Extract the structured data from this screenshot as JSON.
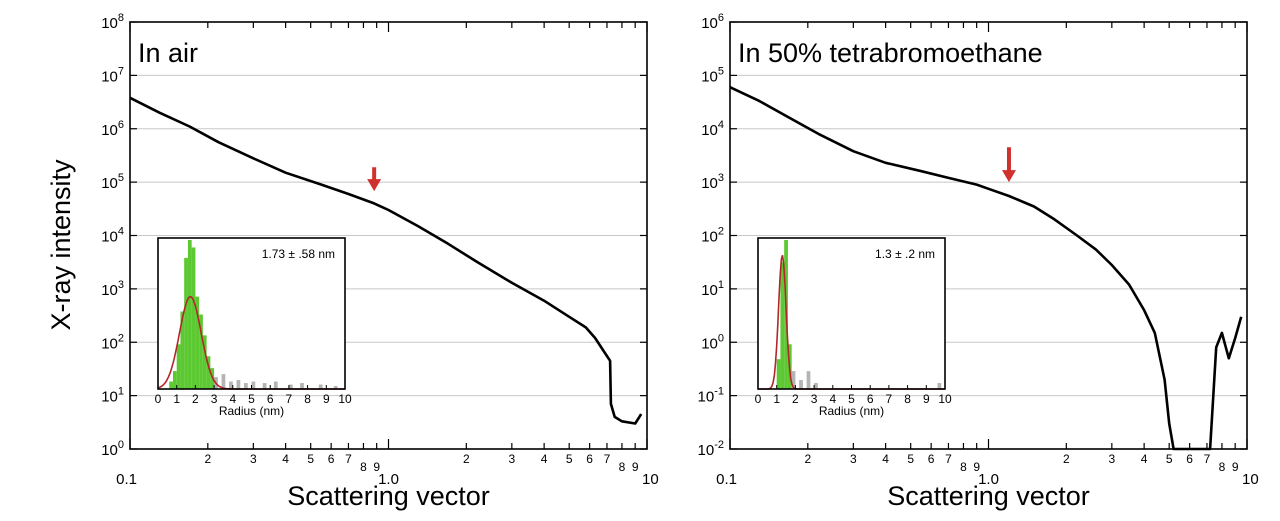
{
  "figure": {
    "ylabel": "X-ray intensity"
  },
  "chart_data": [
    {
      "type": "line",
      "title": "In air",
      "xlabel": "Scattering vector",
      "ylabel": "X-ray intensity",
      "xscale": "log",
      "yscale": "log",
      "xlim": [
        0.1,
        10
      ],
      "ylim": [
        1,
        100000000
      ],
      "x_tick_labels": [
        "0.1",
        "2",
        "3",
        "4",
        "5",
        "6",
        "7",
        "8",
        "9",
        "1.0",
        "2",
        "3",
        "4",
        "5",
        "6",
        "7",
        "8",
        "9",
        "10"
      ],
      "y_tick_labels": [
        "10^0",
        "10^1",
        "10^2",
        "10^3",
        "10^4",
        "10^5",
        "10^6",
        "10^7",
        "10^8"
      ],
      "grid": "horizontal",
      "series": [
        {
          "color": "#000000",
          "x": [
            0.1,
            0.13,
            0.17,
            0.22,
            0.3,
            0.4,
            0.55,
            0.7,
            0.88,
            1.0,
            1.3,
            1.7,
            2.2,
            3.0,
            4.0,
            5.0,
            5.8,
            6.3,
            7.0,
            7.2,
            7.25,
            7.5,
            8.0,
            9.0,
            9.5
          ],
          "y": [
            3800000,
            2000000,
            1100000,
            560000,
            280000,
            150000,
            90000,
            60000,
            40000,
            30000,
            15000,
            7000,
            3200,
            1300,
            600,
            300,
            190,
            120,
            55,
            45,
            7,
            4,
            3.3,
            3,
            4.5
          ]
        }
      ],
      "annotation": {
        "type": "arrow",
        "color": "#d0312d",
        "x": 0.88,
        "y_tip": 68000,
        "y_tail": 190000
      },
      "inset": {
        "type": "bar",
        "xlabel": "Radius (nm)",
        "annotation": "1.73 ± .58 nm",
        "xlim": [
          0,
          10
        ],
        "x_tick_labels": [
          "0",
          "1",
          "2",
          "3",
          "4",
          "5",
          "6",
          "7",
          "8",
          "9",
          "10"
        ],
        "bin_width": 0.2,
        "bins_green": [
          {
            "x": 0.6,
            "v": 0.05
          },
          {
            "x": 0.8,
            "v": 0.12
          },
          {
            "x": 1.0,
            "v": 0.3
          },
          {
            "x": 1.2,
            "v": 0.52
          },
          {
            "x": 1.4,
            "v": 0.88
          },
          {
            "x": 1.6,
            "v": 1.0
          },
          {
            "x": 1.8,
            "v": 0.95
          },
          {
            "x": 2.0,
            "v": 0.62
          },
          {
            "x": 2.2,
            "v": 0.5
          },
          {
            "x": 2.4,
            "v": 0.36
          },
          {
            "x": 2.6,
            "v": 0.22
          },
          {
            "x": 2.8,
            "v": 0.14
          }
        ],
        "bins_gray": [
          {
            "x": 3.0,
            "v": 0.08
          },
          {
            "x": 3.4,
            "v": 0.1
          },
          {
            "x": 3.8,
            "v": 0.05
          },
          {
            "x": 4.2,
            "v": 0.06
          },
          {
            "x": 4.6,
            "v": 0.04
          },
          {
            "x": 5.0,
            "v": 0.05
          },
          {
            "x": 5.6,
            "v": 0.04
          },
          {
            "x": 6.2,
            "v": 0.05
          },
          {
            "x": 7.0,
            "v": 0.03
          },
          {
            "x": 7.6,
            "v": 0.04
          },
          {
            "x": 8.6,
            "v": 0.03
          },
          {
            "x": 9.4,
            "v": 0.02
          }
        ],
        "fit": {
          "color": "#b3262a",
          "mean": 1.73,
          "sigma": 0.58,
          "peak": 0.62
        },
        "colors": {
          "green": "#5cc832",
          "gray": "#b4b4b4"
        }
      }
    },
    {
      "type": "line",
      "title": "In 50% tetrabromoethane",
      "xlabel": "Scattering vector",
      "ylabel": "",
      "xscale": "log",
      "yscale": "log",
      "xlim": [
        0.1,
        10
      ],
      "ylim": [
        0.01,
        1000000
      ],
      "x_tick_labels": [
        "0.1",
        "2",
        "3",
        "4",
        "5",
        "6",
        "7",
        "8",
        "9",
        "1.0",
        "2",
        "3",
        "4",
        "5",
        "6",
        "7",
        "8",
        "9",
        "10"
      ],
      "y_tick_labels": [
        "10^-2",
        "10^-1",
        "10^0",
        "10^1",
        "10^2",
        "10^3",
        "10^4",
        "10^5",
        "10^6"
      ],
      "grid": "horizontal",
      "series": [
        {
          "color": "#000000",
          "x": [
            0.1,
            0.13,
            0.17,
            0.22,
            0.3,
            0.4,
            0.55,
            0.7,
            0.9,
            1.0,
            1.2,
            1.5,
            1.8,
            2.2,
            2.6,
            3.0,
            3.5,
            4.0,
            4.4,
            4.8,
            5.0,
            5.2,
            5.3,
            5.6,
            6.5,
            7.2,
            7.6,
            8.0,
            8.5,
            9.0,
            9.5
          ],
          "y": [
            60000,
            33000,
            16000,
            8000,
            3800,
            2300,
            1600,
            1200,
            900,
            750,
            550,
            350,
            200,
            100,
            55,
            28,
            12,
            4,
            1.5,
            0.2,
            0.03,
            0.01,
            0.01,
            0.01,
            0.01,
            0.01,
            0.8,
            1.5,
            0.5,
            1.2,
            3
          ]
        }
      ],
      "annotation": {
        "type": "arrow",
        "color": "#d0312d",
        "x": 1.2,
        "y_tip": 1000,
        "y_tail": 4500
      },
      "inset": {
        "type": "bar",
        "xlabel": "Radius (nm)",
        "annotation": "1.3 ± .2 nm",
        "xlim": [
          0,
          10
        ],
        "x_tick_labels": [
          "0",
          "1",
          "2",
          "3",
          "4",
          "5",
          "6",
          "7",
          "8",
          "9",
          "10"
        ],
        "bin_width": 0.2,
        "bins_green": [
          {
            "x": 1.0,
            "v": 0.2
          },
          {
            "x": 1.2,
            "v": 0.85
          },
          {
            "x": 1.4,
            "v": 1.0
          },
          {
            "x": 1.6,
            "v": 0.3
          }
        ],
        "bins_gray": [
          {
            "x": 1.8,
            "v": 0.12
          },
          {
            "x": 2.2,
            "v": 0.06
          },
          {
            "x": 2.6,
            "v": 0.12
          },
          {
            "x": 3.0,
            "v": 0.04
          },
          {
            "x": 9.6,
            "v": 0.04
          }
        ],
        "fit": {
          "color": "#b3262a",
          "mean": 1.3,
          "sigma": 0.2,
          "peak": 0.9
        },
        "colors": {
          "green": "#5cc832",
          "gray": "#b4b4b4"
        }
      }
    }
  ]
}
